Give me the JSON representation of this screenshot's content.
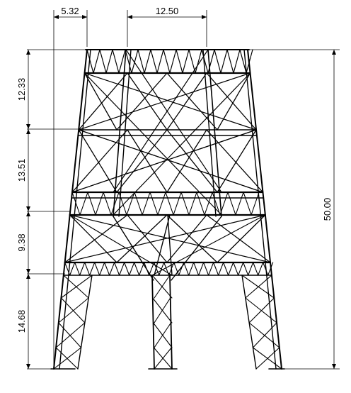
{
  "drawing": {
    "line_color": "#000000",
    "background": "#ffffff",
    "dimensions": {
      "top_left_offset": "5.32",
      "top_span": "12.50",
      "level_1": "12.33",
      "level_2": "13.51",
      "level_3": "9.38",
      "level_4": "14.68",
      "total_height": "50.00"
    }
  }
}
